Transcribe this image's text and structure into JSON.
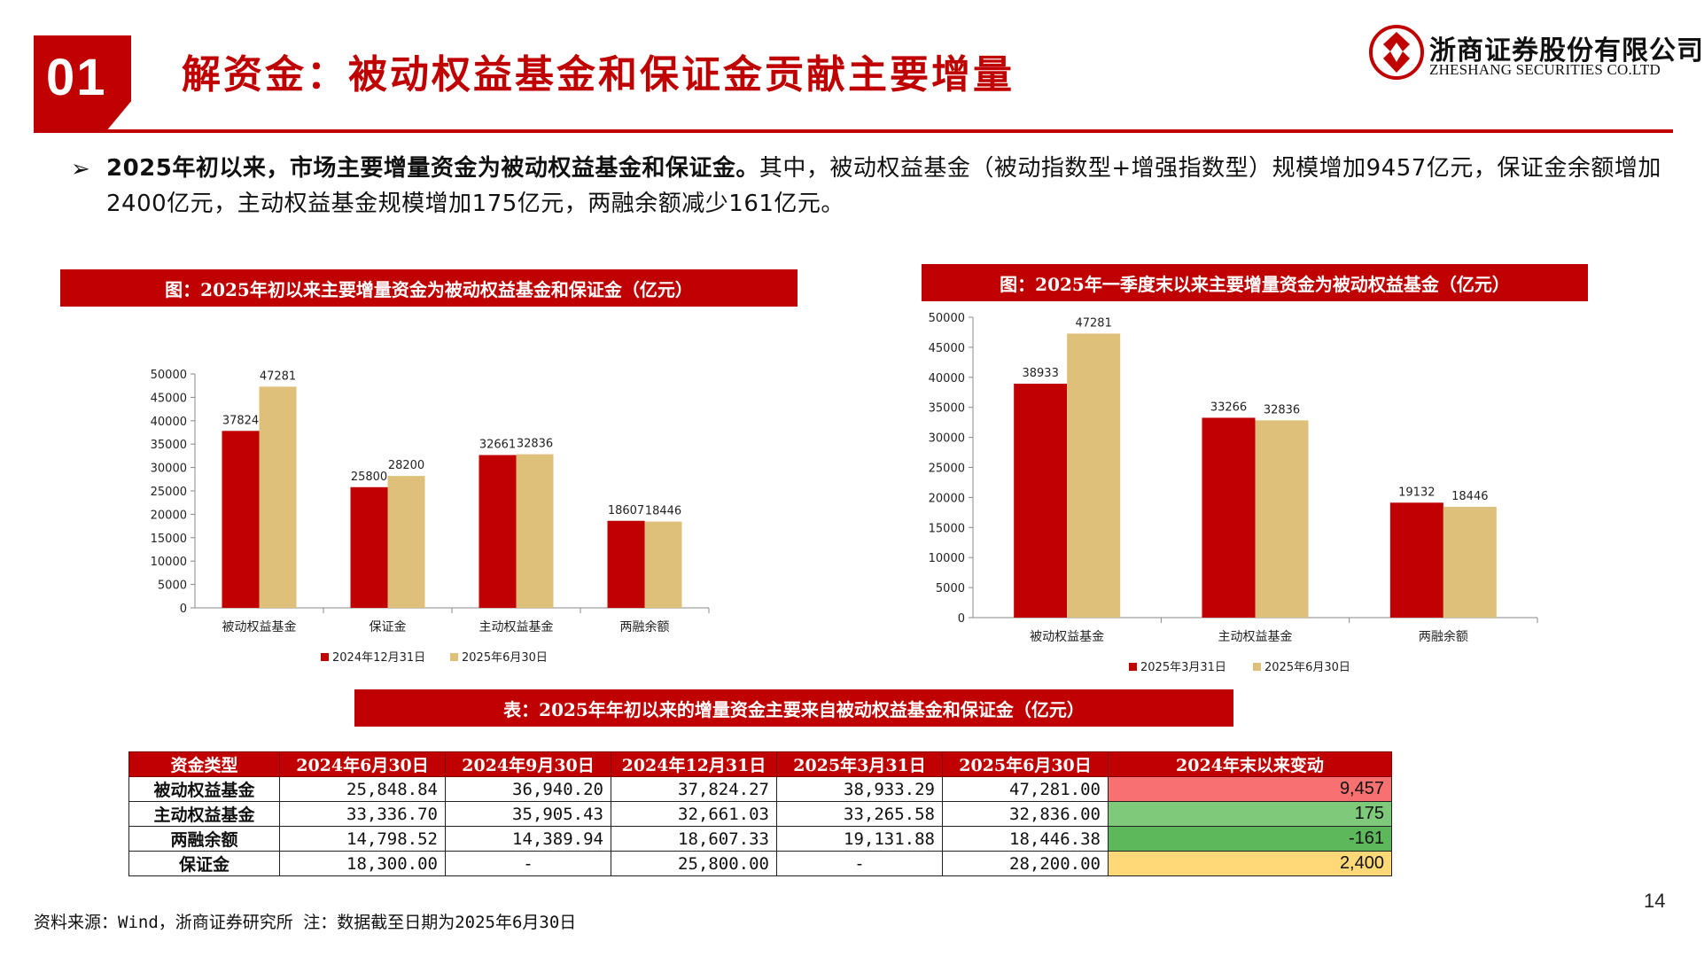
{
  "header": {
    "slide_number": "01",
    "title": "解资金：被动权益基金和保证金贡献主要增量",
    "logo_cn": "浙商证券股份有限公司",
    "logo_en": "ZHESHANG SECURITIES CO.LTD",
    "accent_color": "#c00000"
  },
  "bullet": {
    "bold": "2025年初以来，市场主要增量资金为被动权益基金和保证金。",
    "text": "其中，被动权益基金（被动指数型+增强指数型）规模增加9457亿元，保证金余额增加2400亿元，主动权益基金规模增加175亿元，两融余额减少161亿元。"
  },
  "chart_data": [
    {
      "type": "bar",
      "title": "图：2025年初以来主要增量资金为被动权益基金和保证金（亿元）",
      "categories": [
        "被动权益基金",
        "保证金",
        "主动权益基金",
        "两融余额"
      ],
      "series": [
        {
          "name": "2024年12月31日",
          "values": [
            37824,
            25800,
            32661,
            18607
          ],
          "color": "#c00000"
        },
        {
          "name": "2025年6月30日",
          "values": [
            47281,
            28200,
            32836,
            18446
          ],
          "color": "#dfc07a"
        }
      ],
      "ylim": [
        0,
        50000
      ],
      "yticks": [
        "0",
        "5000",
        "10000",
        "15000",
        "20000",
        "25000",
        "30000",
        "35000",
        "40000",
        "45000",
        "50000"
      ],
      "legend": "bottom",
      "grid": false
    },
    {
      "type": "bar",
      "title": "图：2025年一季度末以来主要增量资金为被动权益基金（亿元）",
      "categories": [
        "被动权益基金",
        "主动权益基金",
        "两融余额"
      ],
      "series": [
        {
          "name": "2025年3月31日",
          "values": [
            38933,
            33266,
            19132
          ],
          "color": "#c00000"
        },
        {
          "name": "2025年6月30日",
          "values": [
            47281,
            32836,
            18446
          ],
          "color": "#dfc07a"
        }
      ],
      "ylim": [
        0,
        50000
      ],
      "yticks": [
        "0",
        "5000",
        "10000",
        "15000",
        "20000",
        "25000",
        "30000",
        "35000",
        "40000",
        "45000",
        "50000"
      ],
      "legend": "bottom",
      "grid": false
    }
  ],
  "table": {
    "title": "表：2025年年初以来的增量资金主要来自被动权益基金和保证金（亿元）",
    "headers": [
      "资金类型",
      "2024年6月30日",
      "2024年9月30日",
      "2024年12月31日",
      "2025年3月31日",
      "2025年6月30日",
      "2024年末以来变动"
    ],
    "rows": [
      {
        "name": "被动权益基金",
        "cells": [
          "25,848.84",
          "36,940.20",
          "37,824.27",
          "38,933.29",
          "47,281.00"
        ],
        "change": "9,457",
        "change_color": "#f87171"
      },
      {
        "name": "主动权益基金",
        "cells": [
          "33,336.70",
          "35,905.43",
          "32,661.03",
          "33,265.58",
          "32,836.00"
        ],
        "change": "175",
        "change_color": "#7fc97a"
      },
      {
        "name": "两融余额",
        "cells": [
          "14,798.52",
          "14,389.94",
          "18,607.33",
          "19,131.88",
          "18,446.38"
        ],
        "change": "-161",
        "change_color": "#5db85c"
      },
      {
        "name": "保证金",
        "cells": [
          "18,300.00",
          "-",
          "25,800.00",
          "-",
          "28,200.00"
        ],
        "change": "2,400",
        "change_color": "#ffd878"
      }
    ]
  },
  "footer": {
    "source": "资料来源：Wind，浙商证券研究所 注：数据截至日期为2025年6月30日",
    "page": "14"
  }
}
